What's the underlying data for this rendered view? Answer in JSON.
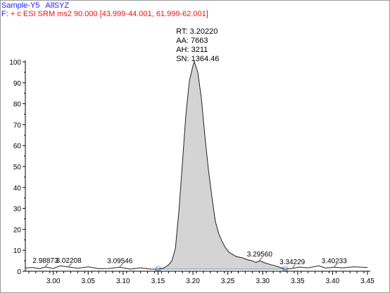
{
  "header": {
    "sample_name": "Sample-Y5",
    "sample_id": "AllSYZ",
    "filter_prefix": "F:",
    "filter_text": "+ c ESI SRM ms2 90.000 [43.999-44.001, 61.999-62.001]"
  },
  "colors": {
    "trace": "#222222",
    "peak_fill": "#d4d4d4",
    "header_blue": "#1a1aff",
    "header_red": "#ee1111",
    "baseline_marker": "#5b9bd5"
  },
  "peak_info": {
    "rt": "RT: 3.20220",
    "aa": "AA: 7663",
    "ah": "AH: 3211",
    "sn": "SN: 1364.46"
  },
  "chart_data": {
    "type": "line",
    "title": "",
    "xlabel": "",
    "ylabel": "",
    "xlim": [
      2.96,
      3.45
    ],
    "ylim": [
      0,
      100
    ],
    "x_ticks": [
      "3.00",
      "3.05",
      "3.10",
      "3.15",
      "3.20",
      "3.25",
      "3.30",
      "3.35",
      "3.40",
      "3.45"
    ],
    "x_tick_values": [
      3.0,
      3.05,
      3.1,
      3.15,
      3.2,
      3.25,
      3.3,
      3.35,
      3.4,
      3.45
    ],
    "y_ticks": [
      "0",
      "10",
      "20",
      "30",
      "40",
      "50",
      "60",
      "70",
      "80",
      "90",
      "100"
    ],
    "y_tick_values": [
      0,
      10,
      20,
      30,
      40,
      50,
      60,
      70,
      80,
      90,
      100
    ],
    "grid": false,
    "series": [
      {
        "x": [
          2.96,
          2.97,
          2.98,
          2.989,
          3.0,
          3.01,
          3.022,
          3.035,
          3.05,
          3.065,
          3.08,
          3.095,
          3.11,
          3.125,
          3.14,
          3.15,
          3.158,
          3.165,
          3.17,
          3.175,
          3.18,
          3.185,
          3.19,
          3.195,
          3.2,
          3.202,
          3.207,
          3.212,
          3.217,
          3.222,
          3.227,
          3.232,
          3.237,
          3.242,
          3.247,
          3.252,
          3.257,
          3.262,
          3.27,
          3.278,
          3.285,
          3.29,
          3.296,
          3.303,
          3.31,
          3.318,
          3.325,
          3.332,
          3.342,
          3.352,
          3.365,
          3.38,
          3.39,
          3.402,
          3.415,
          3.43,
          3.45
        ],
        "y": [
          1.5,
          1.8,
          1.2,
          2.0,
          1.3,
          2.6,
          2.0,
          1.4,
          2.1,
          1.2,
          1.3,
          1.9,
          1.0,
          1.6,
          1.0,
          1.0,
          1.5,
          3.0,
          5.0,
          11.0,
          29.0,
          52.0,
          75.0,
          91.0,
          98.0,
          100.0,
          95.0,
          83.0,
          65.0,
          49.0,
          36.0,
          24.0,
          18.0,
          14.0,
          11.0,
          9.0,
          8.0,
          7.0,
          6.5,
          5.5,
          5.0,
          4.2,
          5.0,
          4.0,
          3.3,
          2.6,
          1.8,
          1.0,
          1.3,
          2.0,
          1.6,
          2.6,
          1.5,
          1.9,
          1.6,
          2.1,
          1.8
        ]
      }
    ],
    "peak_area": {
      "x_start": 3.15,
      "x_end": 3.332
    },
    "peak_labels": [
      {
        "x": 2.98873,
        "y": 2.0,
        "label": "2.98873"
      },
      {
        "x": 3.02208,
        "y": 2.0,
        "label": "3.02208"
      },
      {
        "x": 3.09546,
        "y": 1.9,
        "label": "3.09546"
      },
      {
        "x": 3.2956,
        "y": 5.0,
        "label": "3.29560"
      },
      {
        "x": 3.34229,
        "y": 1.3,
        "label": "3.34229"
      },
      {
        "x": 3.40233,
        "y": 1.9,
        "label": "3.40233"
      }
    ]
  }
}
